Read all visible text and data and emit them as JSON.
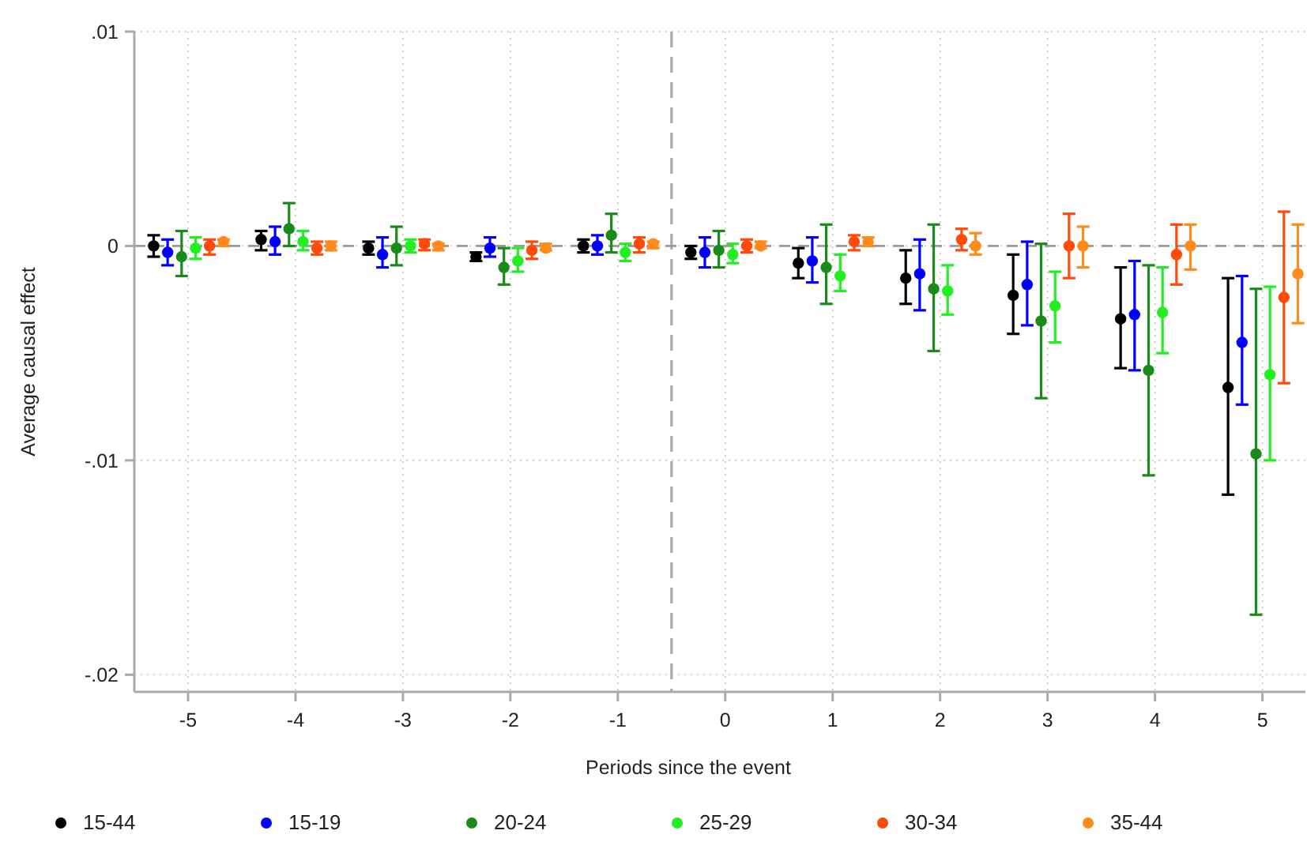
{
  "chart_data": {
    "type": "scatter",
    "xlabel": "Periods since the event",
    "ylabel": "Average causal effect",
    "xlim": [
      -5.5,
      5.4
    ],
    "ylim": [
      -0.0208,
      0.01
    ],
    "xticks": [
      -5,
      -4,
      -3,
      -2,
      -1,
      0,
      1,
      2,
      3,
      4,
      5
    ],
    "yticks": [
      {
        "value": 0.01,
        "label": ".01"
      },
      {
        "value": 0,
        "label": "0"
      },
      {
        "value": -0.01,
        "label": "-.01"
      },
      {
        "value": -0.02,
        "label": "-.02"
      }
    ],
    "grid": true,
    "legend": "bottom",
    "marker": "circle",
    "ref_lines": [
      {
        "axis": "x",
        "value": -0.5,
        "color": "#aaaaaa",
        "line_style": "dashed"
      },
      {
        "axis": "y",
        "value": 0,
        "color": "#999999",
        "line_style": "dashed"
      }
    ],
    "series": [
      {
        "name": "15-44",
        "color": "#000000",
        "x": [
          -5.32,
          -4.32,
          -3.32,
          -2.32,
          -1.32,
          -0.32,
          0.68,
          1.68,
          2.68,
          3.68,
          4.68
        ],
        "values": [
          0,
          0.0003,
          -0.0001,
          -0.0005,
          0,
          -0.0003,
          -0.0008,
          -0.0015,
          -0.0023,
          -0.0034,
          -0.0066
        ],
        "errors": [
          [
            -0.0005,
            0.0005
          ],
          [
            -0.0002,
            0.0007
          ],
          [
            -0.0004,
            0.0002
          ],
          [
            -0.0007,
            -0.0003
          ],
          [
            -0.0003,
            0.0003
          ],
          [
            -0.0006,
            0
          ],
          [
            -0.0015,
            -0.0001
          ],
          [
            -0.0027,
            -0.0002
          ],
          [
            -0.0041,
            -0.0004
          ],
          [
            -0.0057,
            -0.001
          ],
          [
            -0.0116,
            -0.0015
          ]
        ]
      },
      {
        "name": "15-19",
        "color": "#0000ff",
        "x": [
          -5.19,
          -4.19,
          -3.19,
          -2.19,
          -1.19,
          -0.19,
          0.81,
          1.81,
          2.81,
          3.81,
          4.81
        ],
        "values": [
          -0.0003,
          0.0002,
          -0.0004,
          -0.0001,
          0,
          -0.0003,
          -0.0007,
          -0.0013,
          -0.0018,
          -0.0032,
          -0.0045
        ],
        "errors": [
          [
            -0.0009,
            0.0003
          ],
          [
            -0.0004,
            0.0009
          ],
          [
            -0.001,
            0.0004
          ],
          [
            -0.0005,
            0.0004
          ],
          [
            -0.0004,
            0.0005
          ],
          [
            -0.001,
            0.0004
          ],
          [
            -0.0017,
            0.0004
          ],
          [
            -0.003,
            0.0003
          ],
          [
            -0.0037,
            0.0002
          ],
          [
            -0.0058,
            -0.0007
          ],
          [
            -0.0074,
            -0.0014
          ]
        ]
      },
      {
        "name": "20-24",
        "color": "#1a8a1a",
        "x": [
          -5.06,
          -4.06,
          -3.06,
          -2.06,
          -1.06,
          -0.06,
          0.94,
          1.94,
          2.94,
          3.94,
          4.94
        ],
        "values": [
          -0.0005,
          0.0008,
          -0.0001,
          -0.001,
          0.0005,
          -0.0002,
          -0.001,
          -0.002,
          -0.0035,
          -0.0058,
          -0.0097
        ],
        "errors": [
          [
            -0.0014,
            0.0007
          ],
          [
            0,
            0.002
          ],
          [
            -0.0009,
            0.0009
          ],
          [
            -0.0018,
            -0.0001
          ],
          [
            -0.0003,
            0.0015
          ],
          [
            -0.001,
            0.0007
          ],
          [
            -0.0027,
            0.001
          ],
          [
            -0.0049,
            0.001
          ],
          [
            -0.0071,
            0.0001
          ],
          [
            -0.0107,
            -0.0009
          ],
          [
            -0.0172,
            -0.002
          ]
        ]
      },
      {
        "name": "25-29",
        "color": "#22ee22",
        "x": [
          -4.93,
          -3.93,
          -2.93,
          -1.93,
          -0.93,
          0.07,
          1.07,
          2.07,
          3.07,
          4.07,
          5.07
        ],
        "values": [
          -0.0001,
          0.0002,
          0,
          -0.0007,
          -0.0003,
          -0.0004,
          -0.0014,
          -0.0021,
          -0.0028,
          -0.0031,
          -0.006
        ],
        "errors": [
          [
            -0.0006,
            0.0004
          ],
          [
            -0.0002,
            0.0007
          ],
          [
            -0.0003,
            0.0003
          ],
          [
            -0.0012,
            -0.0001
          ],
          [
            -0.0007,
            0.0001
          ],
          [
            -0.0008,
            0.0001
          ],
          [
            -0.0021,
            -0.0004
          ],
          [
            -0.0032,
            -0.0009
          ],
          [
            -0.0045,
            -0.0012
          ],
          [
            -0.005,
            -0.001
          ],
          [
            -0.01,
            -0.0019
          ]
        ]
      },
      {
        "name": "30-34",
        "color": "#ff4a0a",
        "x": [
          -4.8,
          -3.8,
          -2.8,
          -1.8,
          -0.8,
          0.2,
          1.2,
          2.2,
          3.2,
          4.2,
          5.2
        ],
        "values": [
          0,
          -0.0001,
          0.0001,
          -0.0002,
          0.0001,
          0,
          0.0002,
          0.0003,
          0,
          -0.0004,
          -0.0024
        ],
        "errors": [
          [
            -0.0004,
            0.0003
          ],
          [
            -0.0004,
            0.0002
          ],
          [
            -0.0002,
            0.0003
          ],
          [
            -0.0006,
            0.0002
          ],
          [
            -0.0003,
            0.0004
          ],
          [
            -0.0003,
            0.0003
          ],
          [
            -0.0002,
            0.0005
          ],
          [
            -0.0002,
            0.0008
          ],
          [
            -0.0015,
            0.0015
          ],
          [
            -0.0018,
            0.001
          ],
          [
            -0.0064,
            0.0016
          ]
        ]
      },
      {
        "name": "35-44",
        "color": "#ff8a1a",
        "x": [
          -4.67,
          -3.67,
          -2.67,
          -1.67,
          -0.67,
          0.33,
          1.33,
          2.33,
          3.33,
          4.33,
          5.33
        ],
        "values": [
          0.0002,
          0,
          0,
          -0.0001,
          0.0001,
          0,
          0.0002,
          0,
          0,
          0,
          -0.0013
        ],
        "errors": [
          [
            0,
            0.0003
          ],
          [
            -0.0002,
            0.0002
          ],
          [
            -0.0002,
            0.0001
          ],
          [
            -0.0002,
            0.0001
          ],
          [
            -0.0001,
            0.0002
          ],
          [
            -0.0001,
            0.0002
          ],
          [
            0,
            0.0004
          ],
          [
            -0.0004,
            0.0006
          ],
          [
            -0.001,
            0.0009
          ],
          [
            -0.0011,
            0.001
          ],
          [
            -0.0036,
            0.001
          ]
        ]
      }
    ]
  }
}
